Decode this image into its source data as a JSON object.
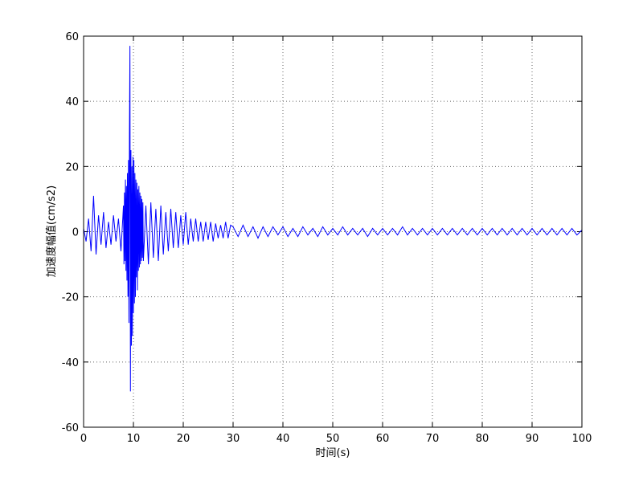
{
  "chart_data": {
    "type": "line",
    "xlabel": "时间(s)",
    "ylabel": "加速度幅值(cm/s2)",
    "xlim": [
      0,
      100
    ],
    "xticks": [
      0,
      10,
      20,
      30,
      40,
      50,
      60,
      70,
      80,
      90,
      100
    ],
    "ylim": [
      -60,
      60
    ],
    "yticks": [
      -60,
      -40,
      -20,
      0,
      20,
      40,
      60
    ],
    "grid": true,
    "x": [
      0,
      0.5,
      1,
      1.5,
      2,
      2.5,
      3,
      3.5,
      4,
      4.5,
      5,
      5.5,
      6,
      6.5,
      7,
      7.5,
      8.0,
      8.1,
      8.2,
      8.3,
      8.4,
      8.5,
      8.6,
      8.7,
      8.8,
      8.9,
      9.0,
      9.1,
      9.2,
      9.3,
      9.4,
      9.5,
      9.6,
      9.7,
      9.8,
      9.9,
      10.0,
      10.1,
      10.2,
      10.3,
      10.4,
      10.5,
      10.6,
      10.7,
      10.8,
      10.9,
      11.0,
      11.1,
      11.2,
      11.3,
      11.4,
      11.5,
      11.6,
      11.7,
      11.8,
      11.9,
      12,
      12.5,
      13,
      13.5,
      14,
      14.5,
      15,
      15.5,
      16,
      16.5,
      17,
      17.5,
      18,
      18.5,
      19,
      19.5,
      20,
      20.5,
      21,
      21.5,
      22,
      22.5,
      23,
      23.5,
      24,
      24.5,
      25,
      25.5,
      26,
      26.5,
      27,
      27.5,
      28,
      28.5,
      29,
      29.5,
      30,
      31,
      32,
      33,
      34,
      35,
      36,
      37,
      38,
      39,
      40,
      41,
      42,
      43,
      44,
      45,
      46,
      47,
      48,
      49,
      50,
      51,
      52,
      53,
      54,
      55,
      56,
      57,
      58,
      59,
      60,
      61,
      62,
      63,
      64,
      65,
      66,
      67,
      68,
      69,
      70,
      71,
      72,
      73,
      74,
      75,
      76,
      77,
      78,
      79,
      80,
      81,
      82,
      83,
      84,
      85,
      86,
      87,
      88,
      89,
      90,
      91,
      92,
      93,
      94,
      95,
      96,
      97,
      98,
      99,
      100
    ],
    "series": [
      {
        "color": "#0000ff",
        "values": [
          1,
          -3,
          4,
          -6,
          11,
          -7,
          5,
          -4,
          6,
          -5,
          3,
          -4,
          5,
          -3,
          4,
          -6,
          8,
          -10,
          12,
          -9,
          16,
          -12,
          14,
          -15,
          18,
          -20,
          22,
          -28,
          30,
          57,
          -49,
          25,
          -35,
          20,
          -32,
          23,
          -25,
          22,
          -22,
          18,
          -20,
          16,
          -14,
          15,
          -18,
          13,
          -12,
          14,
          -11,
          12,
          -10,
          11,
          -9,
          10,
          -8,
          9,
          -9,
          8,
          -10,
          9,
          -8,
          7,
          -9,
          8,
          -7,
          6,
          -6,
          7,
          -5,
          6,
          -5,
          5,
          -4,
          6,
          -4,
          4,
          -3,
          4,
          -3,
          3,
          -3,
          3,
          -2.5,
          3,
          -3,
          2.5,
          -2,
          2,
          -2,
          3,
          -2,
          2,
          1.5,
          -1.5,
          2,
          -1.5,
          1.5,
          -2,
          1.5,
          -1.5,
          1.5,
          -1,
          1.5,
          -1.5,
          1,
          -1.5,
          1.5,
          -1,
          1,
          -1.5,
          1.5,
          -1,
          1,
          -1,
          1.5,
          -1,
          1,
          -1,
          1,
          -1.5,
          1,
          -1,
          1,
          -1,
          1,
          -1,
          1.5,
          -1,
          1,
          -1,
          1,
          -1,
          1,
          -1,
          1,
          -1,
          1,
          -1,
          1,
          -1,
          1,
          -1,
          1,
          -1,
          1,
          -1,
          1,
          -1,
          1,
          -1,
          1,
          -1,
          1,
          -1,
          1,
          -1,
          1,
          -1,
          1,
          -1,
          1,
          -1,
          0.5
        ]
      }
    ]
  }
}
